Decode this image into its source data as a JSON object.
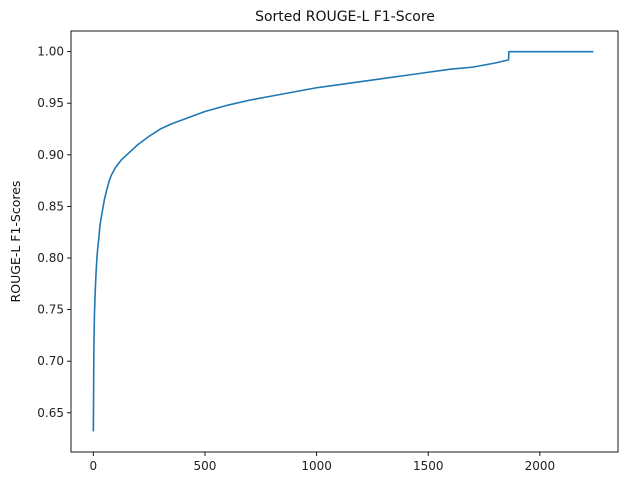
{
  "chart_data": {
    "type": "line",
    "title": "Sorted ROUGE-L F1-Score",
    "xlabel": "",
    "ylabel": "ROUGE-L F1-Scores",
    "xlim": [
      -100,
      2350
    ],
    "ylim": [
      0.612,
      1.02
    ],
    "xticks": [
      0,
      500,
      1000,
      1500,
      2000
    ],
    "xtick_labels": [
      "0",
      "500",
      "1000",
      "1500",
      "2000"
    ],
    "yticks": [
      0.65,
      0.7,
      0.75,
      0.8,
      0.85,
      0.9,
      0.95,
      1.0
    ],
    "ytick_labels": [
      "0.65",
      "0.70",
      "0.75",
      "0.80",
      "0.85",
      "0.90",
      "0.95",
      "1.00"
    ],
    "grid": false,
    "series": [
      {
        "color": "#1f77b4",
        "x": [
          0,
          1,
          2,
          3,
          5,
          8,
          12,
          16,
          20,
          25,
          30,
          40,
          50,
          60,
          70,
          80,
          100,
          125,
          150,
          200,
          250,
          300,
          350,
          400,
          500,
          600,
          700,
          800,
          900,
          1000,
          1100,
          1200,
          1300,
          1400,
          1500,
          1600,
          1700,
          1800,
          1860,
          1861,
          1900,
          2000,
          2100,
          2200,
          2240
        ],
        "y": [
          0.632,
          0.66,
          0.7,
          0.72,
          0.745,
          0.765,
          0.785,
          0.8,
          0.81,
          0.82,
          0.832,
          0.845,
          0.857,
          0.866,
          0.874,
          0.88,
          0.888,
          0.895,
          0.9,
          0.91,
          0.918,
          0.925,
          0.93,
          0.934,
          0.942,
          0.948,
          0.953,
          0.957,
          0.961,
          0.965,
          0.968,
          0.971,
          0.974,
          0.977,
          0.98,
          0.983,
          0.985,
          0.989,
          0.992,
          1.0,
          1.0,
          1.0,
          1.0,
          1.0,
          1.0
        ]
      }
    ]
  }
}
